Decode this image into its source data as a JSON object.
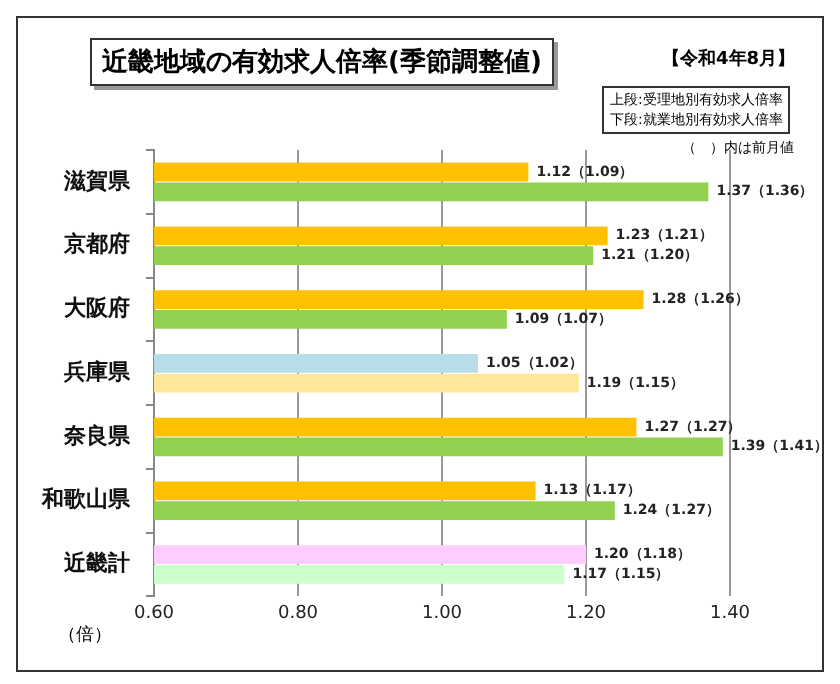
{
  "chart_data": {
    "type": "bar",
    "orientation": "horizontal",
    "title": "近畿地域の有効求人倍率(季節調整値)",
    "xlabel": "（倍）",
    "categories": [
      "滋賀県",
      "京都府",
      "大阪府",
      "兵庫県",
      "奈良県",
      "和歌山県",
      "近畿計"
    ],
    "series": [
      {
        "colors": [
          "#ffc000",
          "#ffc000",
          "#ffc000",
          "#b7dee8",
          "#ffc000",
          "#ffc000",
          "#ffccff"
        ],
        "values": [
          1.12,
          1.23,
          1.28,
          1.05,
          1.27,
          1.13,
          1.2
        ],
        "value_labels": [
          "1.12（1.09）",
          "1.23（1.21）",
          "1.28（1.26）",
          "1.05（1.02）",
          "1.27（1.27）",
          "1.13（1.17）",
          "1.20（1.18）"
        ]
      },
      {
        "colors": [
          "#92d050",
          "#92d050",
          "#92d050",
          "#ffe699",
          "#92d050",
          "#92d050",
          "#ccffcc"
        ],
        "values": [
          1.37,
          1.21,
          1.09,
          1.19,
          1.39,
          1.24,
          1.17
        ],
        "value_labels": [
          "1.37（1.36）",
          "1.21（1.20）",
          "1.09（1.07）",
          "1.19（1.15）",
          "1.39（1.41）",
          "1.24（1.27）",
          "1.17（1.15）"
        ]
      }
    ],
    "xlim": [
      0.6,
      1.4
    ],
    "xticks": [
      {
        "value": 0.6,
        "label": "0.60"
      },
      {
        "value": 0.8,
        "label": "0.80"
      },
      {
        "value": 1.0,
        "label": "1.00"
      },
      {
        "value": 1.2,
        "label": "1.20"
      },
      {
        "value": 1.4,
        "label": "1.40"
      }
    ],
    "grid": "x",
    "legend": false,
    "annotations": [
      "【令和4年8月】",
      "上段:受理地別有効求人倍率",
      "下段:就業地別有効求人倍率",
      "（　）内は前月値"
    ]
  }
}
